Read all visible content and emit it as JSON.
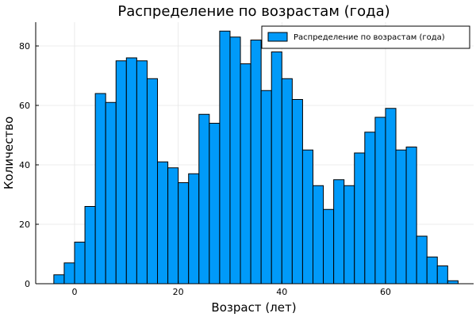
{
  "chart_data": {
    "type": "bar",
    "title": "Распределение по возрастам (года)",
    "xlabel": "Возраст (лет)",
    "ylabel": "Количество",
    "legend_position": "top-right",
    "grid": true,
    "bar_color": "#009af9",
    "xlim": [
      -7.5,
      77
    ],
    "ylim": [
      0,
      88
    ],
    "xticks": [
      0,
      20,
      40,
      60
    ],
    "yticks": [
      0,
      20,
      40,
      60,
      80
    ],
    "bin_width": 2,
    "series": [
      {
        "name": "Распределение по возрастам (года)",
        "bins": [
          {
            "x0": -4,
            "x1": -2,
            "count": 3
          },
          {
            "x0": -2,
            "x1": 0,
            "count": 7
          },
          {
            "x0": 0,
            "x1": 2,
            "count": 14
          },
          {
            "x0": 2,
            "x1": 4,
            "count": 26
          },
          {
            "x0": 4,
            "x1": 6,
            "count": 64
          },
          {
            "x0": 6,
            "x1": 8,
            "count": 61
          },
          {
            "x0": 8,
            "x1": 10,
            "count": 75
          },
          {
            "x0": 10,
            "x1": 12,
            "count": 76
          },
          {
            "x0": 12,
            "x1": 14,
            "count": 75
          },
          {
            "x0": 14,
            "x1": 16,
            "count": 69
          },
          {
            "x0": 16,
            "x1": 18,
            "count": 41
          },
          {
            "x0": 18,
            "x1": 20,
            "count": 39
          },
          {
            "x0": 20,
            "x1": 22,
            "count": 34
          },
          {
            "x0": 22,
            "x1": 24,
            "count": 37
          },
          {
            "x0": 24,
            "x1": 26,
            "count": 57
          },
          {
            "x0": 26,
            "x1": 28,
            "count": 54
          },
          {
            "x0": 28,
            "x1": 30,
            "count": 85
          },
          {
            "x0": 30,
            "x1": 32,
            "count": 83
          },
          {
            "x0": 32,
            "x1": 34,
            "count": 74
          },
          {
            "x0": 34,
            "x1": 36,
            "count": 82
          },
          {
            "x0": 36,
            "x1": 38,
            "count": 65
          },
          {
            "x0": 38,
            "x1": 40,
            "count": 78
          },
          {
            "x0": 40,
            "x1": 42,
            "count": 69
          },
          {
            "x0": 42,
            "x1": 44,
            "count": 62
          },
          {
            "x0": 44,
            "x1": 46,
            "count": 45
          },
          {
            "x0": 46,
            "x1": 48,
            "count": 33
          },
          {
            "x0": 48,
            "x1": 50,
            "count": 25
          },
          {
            "x0": 50,
            "x1": 52,
            "count": 35
          },
          {
            "x0": 52,
            "x1": 54,
            "count": 33
          },
          {
            "x0": 54,
            "x1": 56,
            "count": 44
          },
          {
            "x0": 56,
            "x1": 58,
            "count": 51
          },
          {
            "x0": 58,
            "x1": 60,
            "count": 56
          },
          {
            "x0": 60,
            "x1": 62,
            "count": 59
          },
          {
            "x0": 62,
            "x1": 64,
            "count": 45
          },
          {
            "x0": 64,
            "x1": 66,
            "count": 46
          },
          {
            "x0": 66,
            "x1": 68,
            "count": 16
          },
          {
            "x0": 68,
            "x1": 70,
            "count": 9
          },
          {
            "x0": 70,
            "x1": 72,
            "count": 6
          },
          {
            "x0": 72,
            "x1": 74,
            "count": 1
          }
        ]
      }
    ]
  }
}
